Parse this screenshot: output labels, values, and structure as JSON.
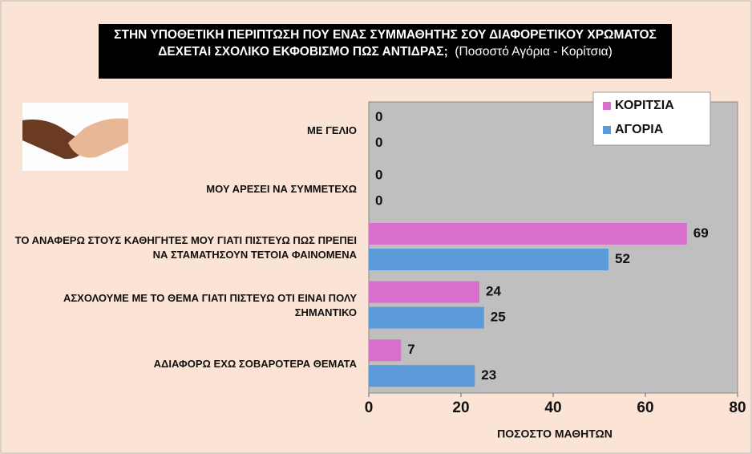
{
  "chart_data": {
    "type": "barh",
    "title": "ΣΤΗΝ ΥΠΟΘΕΤΙΚΗ ΠΕΡΙΠΤΩΣΗ ΠΟΥ ΕΝΑΣ ΣΥΜΜΑΘΗΤΗΣ ΣΟΥ ΔΙΑΦΟΡΕΤΙΚΟΥ ΧΡΩΜΑΤΟΣ ΔΕΧΕΤΑΙ ΣΧΟΛΙΚΟ ΕΚΦΟΒΙΣΜΟ ΠΩΣ ΑΝΤΙΔΡΑΣ;",
    "subtitle": "(Ποσοστό Αγόρια - Κορίτσια)",
    "x_label": "ΠΟΣΟΣΤΟ ΜΑΘΗΤΩΝ",
    "categories": [
      "ΜΕ ΓΕΛΙΟ",
      "ΜΟΥ ΑΡΕΣΕΙ ΝΑ ΣΥΜΜΕΤΕΧΩ",
      "ΤΟ ΑΝΑΦΕΡΩ ΣΤΟΥΣ ΚΑΘΗΓΗΤΕΣ ΜΟΥ ΓΙΑΤΙ ΠΙΣΤΕΥΩ ΠΩΣ ΠΡΕΠΕΙ ΝΑ ΣΤΑΜΑΤΗΣΟΥΝ ΤΕΤΟΙΑ ΦΑΙΝΟΜΕΝΑ",
      "ΑΣΧΟΛΟΥΜΕ ΜΕ ΤΟ ΘΕΜΑ ΓΙΑΤΙ ΠΙΣΤΕΥΩ ΟΤΙ ΕΙΝΑΙ ΠΟΛΥ ΣΗΜΑΝΤΙΚΟ",
      "ΑΔΙΑΦΟΡΩ ΕΧΩ ΣΟΒΑΡΟΤΕΡΑ ΘΕΜΑΤΑ"
    ],
    "series": [
      {
        "name": "ΚΟΡΙΤΣΙΑ",
        "color": "#d86fcc",
        "values": [
          0,
          0,
          69,
          24,
          7
        ]
      },
      {
        "name": "ΑΓΟΡΙΑ",
        "color": "#5b9bd9",
        "values": [
          0,
          0,
          52,
          25,
          23
        ]
      }
    ],
    "xlim": [
      0,
      80
    ],
    "xticks": [
      0,
      20,
      40,
      60,
      80
    ],
    "legend": "upper right"
  }
}
